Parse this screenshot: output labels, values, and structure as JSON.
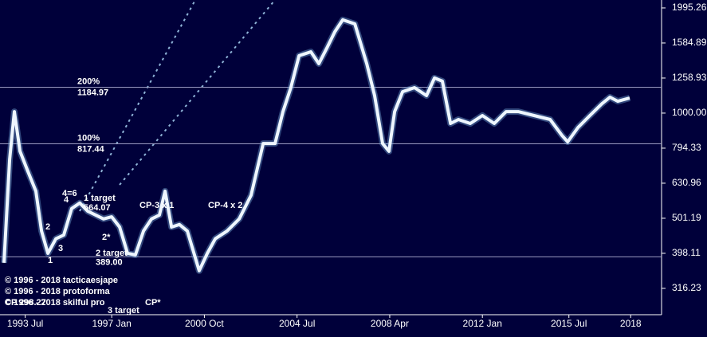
{
  "chart_data": {
    "type": "line",
    "log_scale": true,
    "x": [
      1992.64,
      1992.87,
      1993.06,
      1993.29,
      1993.61,
      1993.93,
      1994.16,
      1994.42,
      1994.74,
      1995.06,
      1995.38,
      1995.71,
      1996.03,
      1996.35,
      1996.67,
      1997.0,
      1997.32,
      1997.64,
      1997.96,
      1998.29,
      1998.61,
      1998.93,
      1999.16,
      1999.42,
      1999.74,
      2000.06,
      2000.54,
      2000.87,
      2001.19,
      2001.67,
      2002.16,
      2002.64,
      2003.13,
      2003.61,
      2003.93,
      2004.25,
      2004.58,
      2005.06,
      2005.38,
      2005.71,
      2006.03,
      2006.35,
      2006.84,
      2007.32,
      2007.64,
      2007.96,
      2008.22,
      2008.45,
      2008.77,
      2009.25,
      2009.74,
      2010.06,
      2010.38,
      2010.71,
      2011.03,
      2011.51,
      2012.0,
      2012.48,
      2012.96,
      2013.45,
      2014.09,
      2014.74,
      2015.22,
      2015.45,
      2015.87,
      2016.35,
      2016.84,
      2017.16,
      2017.48,
      2017.96
    ],
    "series": [
      {
        "color": "#eef6ff",
        "values": [
          374,
          738,
          1010,
          778,
          682,
          599,
          461,
          398,
          438,
          449,
          534,
          554,
          525,
          512,
          499,
          506,
          473,
          398,
          394,
          461,
          499,
          512,
          599,
          473,
          481,
          461,
          355,
          398,
          438,
          461,
          499,
          583,
          819,
          819,
          1010,
          1182,
          1458,
          1496,
          1384,
          1535,
          1706,
          1845,
          1797,
          1384,
          1122,
          819,
          778,
          1010,
          1151,
          1182,
          1122,
          1259,
          1233,
          934,
          959,
          934,
          984,
          934,
          1010,
          1010,
          984,
          959,
          863,
          828,
          910,
          984,
          1064,
          1110,
          1081,
          1104
        ]
      }
    ],
    "xlim": [
      1992.48,
      2019.25
    ],
    "ylim": [
      266,
      2102
    ],
    "xticks": [
      {
        "value": 1993.5,
        "label": "1993 Jul"
      },
      {
        "value": 1997.0,
        "label": "1997 Jan"
      },
      {
        "value": 2000.75,
        "label": "2000 Oct"
      },
      {
        "value": 2004.5,
        "label": "2004 Jul"
      },
      {
        "value": 2008.25,
        "label": "2008 Apr"
      },
      {
        "value": 2012.0,
        "label": "2012 Jan"
      },
      {
        "value": 2015.5,
        "label": "2015 Jul"
      },
      2018
    ],
    "yticks": [
      316.23,
      398.11,
      501.19,
      630.96,
      794.33,
      {
        "value": 1000,
        "label": "1000.00"
      },
      1258.93,
      1584.89,
      1995.26
    ],
    "levels": [
      {
        "label": "200%",
        "value": 1184.97
      },
      {
        "label": "100%",
        "value": 817.44
      },
      {
        "value": 389,
        "value_label": "389.00"
      }
    ],
    "annotations": [
      "4=6",
      "4",
      "1 target",
      "564.07",
      "2",
      "3",
      "1",
      "2*",
      "2 target",
      "CP-3 x 1",
      "CP-4 x 2",
      "3 target",
      "CP*",
      "CP 298.27",
      "© 1996 - 2018 tacticaesjape",
      "© 1996 - 2018 protoforma",
      "© 1996 - 2018 skilful pro"
    ]
  }
}
